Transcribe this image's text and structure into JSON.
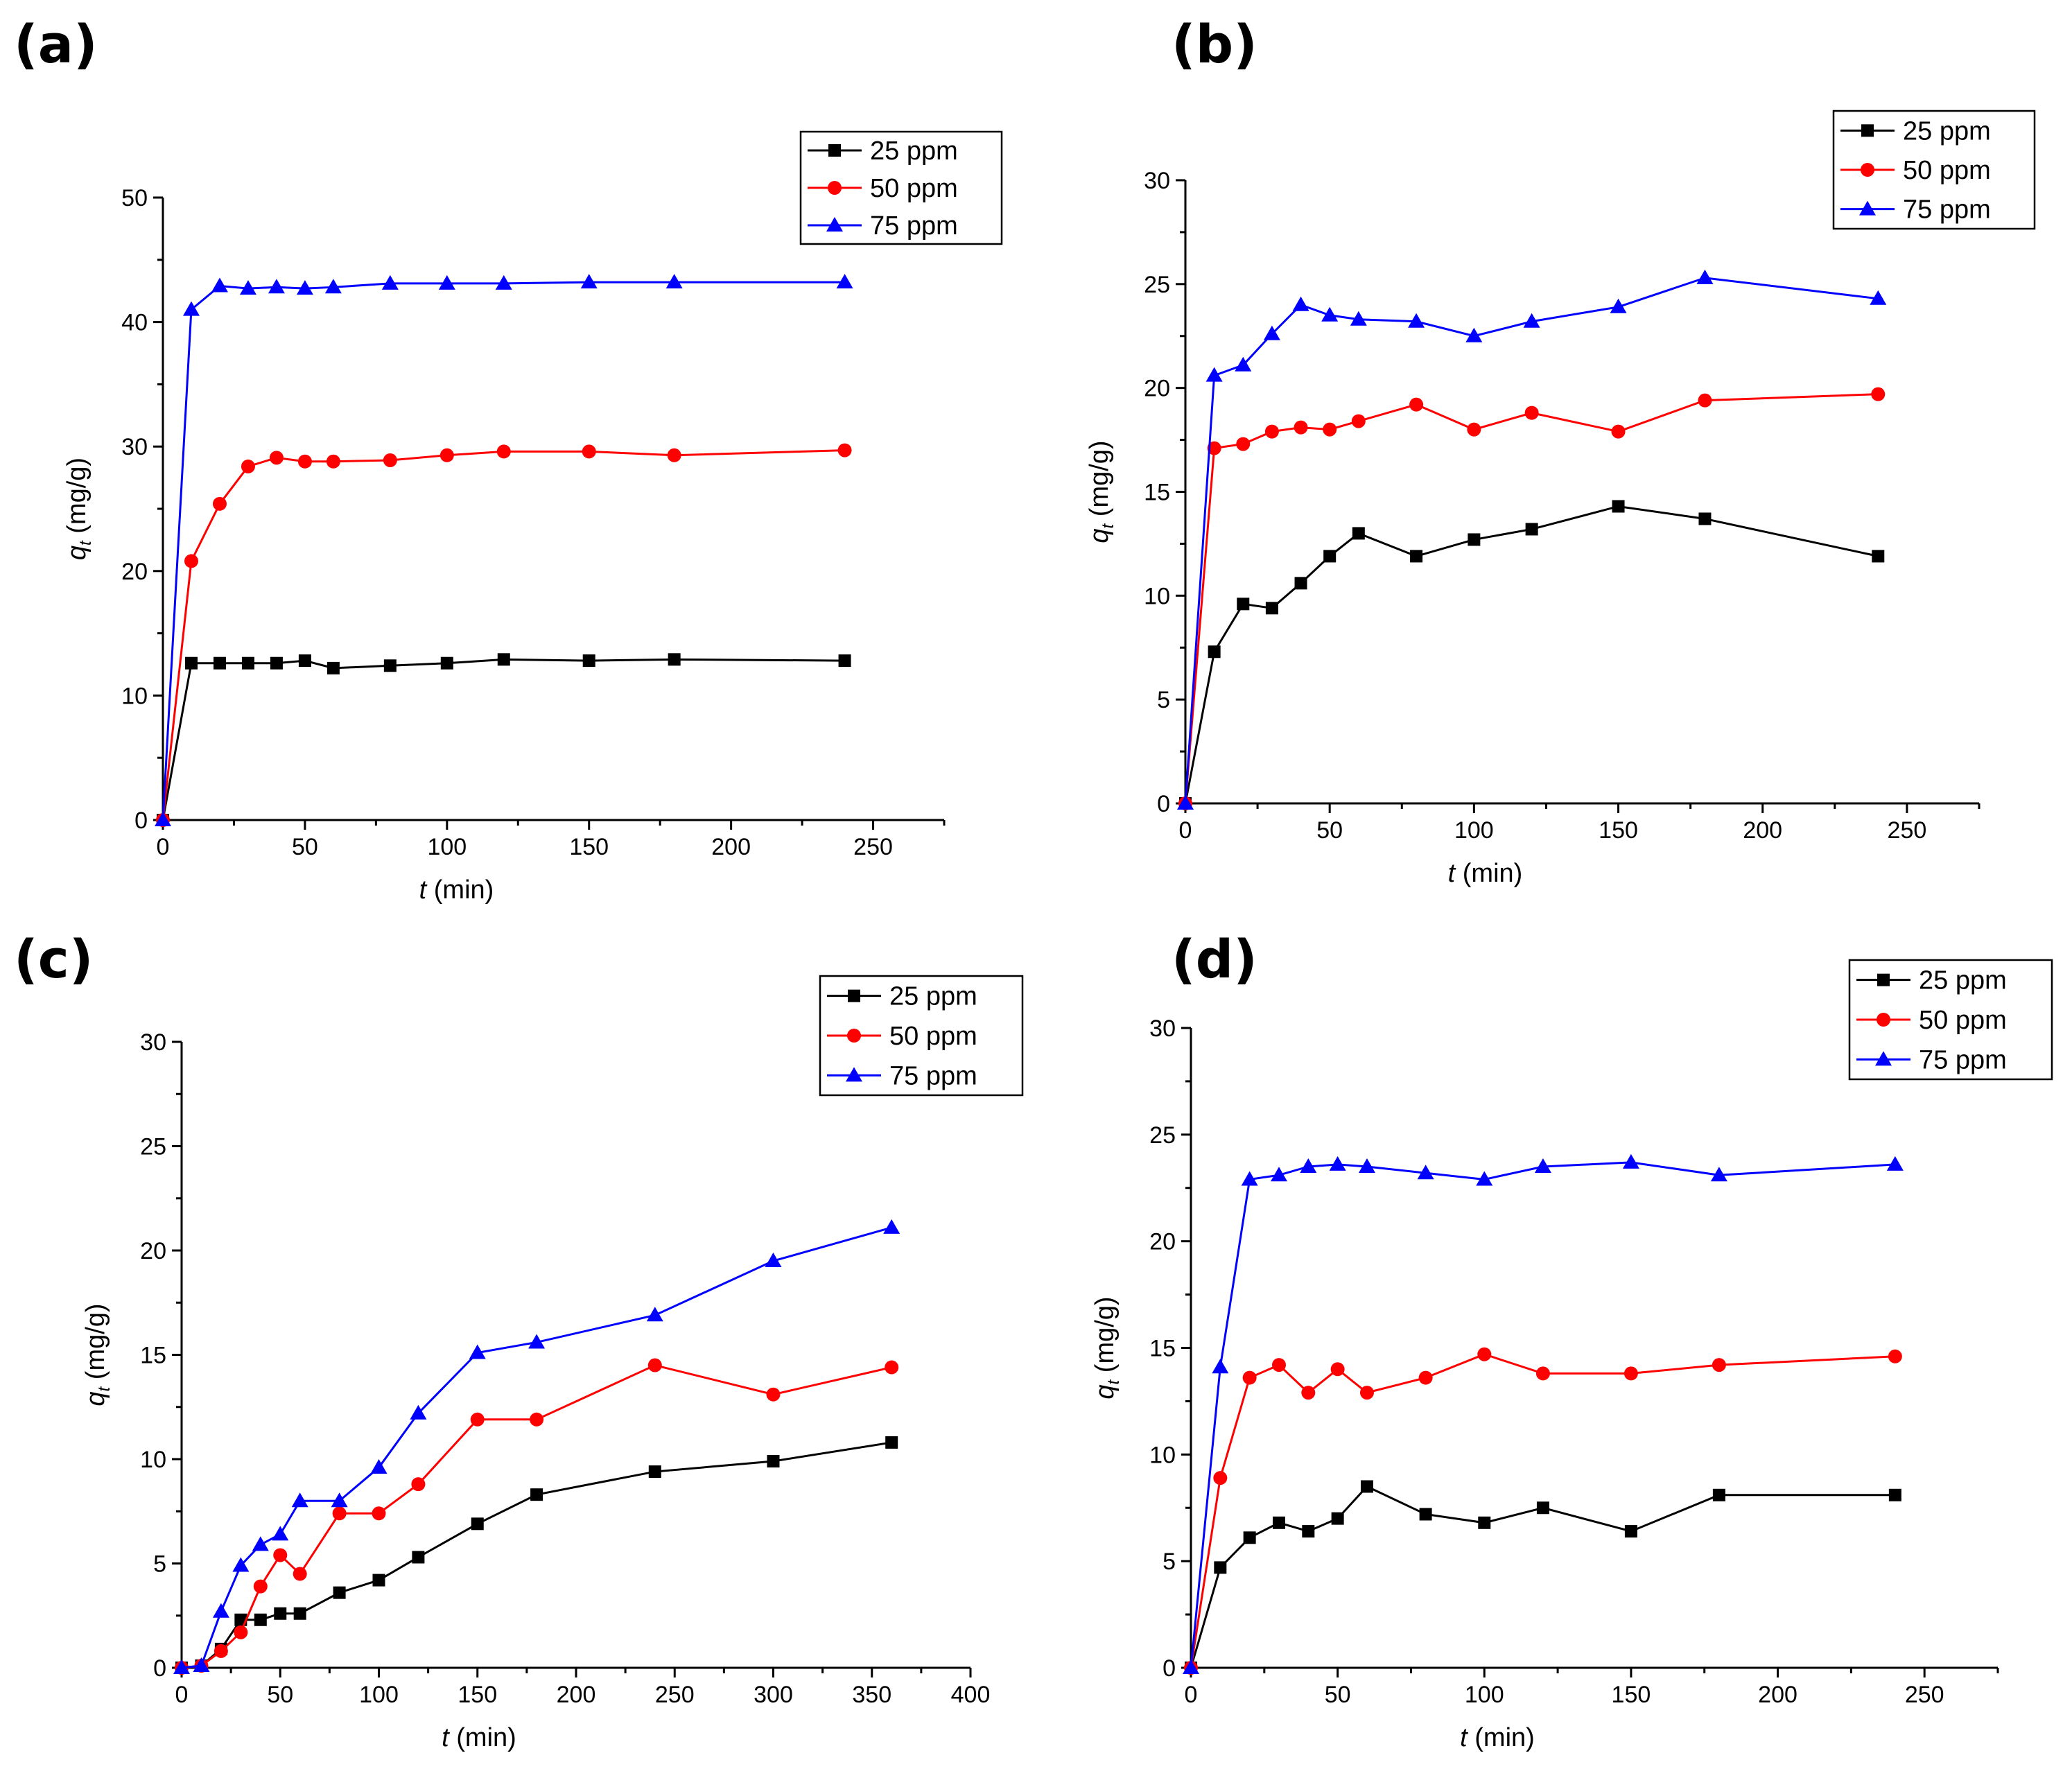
{
  "chart_data": [
    {
      "panel": "(a)",
      "type": "line",
      "xlabel_var": "t",
      "xlabel_unit": " (min)",
      "ylabel_var": "q",
      "ylabel_sub": "t",
      "ylabel_unit": " (mg/g)",
      "xlim": [
        0,
        275
      ],
      "ylim": [
        0,
        50
      ],
      "xticks": [
        0,
        50,
        100,
        150,
        200,
        250
      ],
      "yticks": [
        0,
        10,
        20,
        30,
        40,
        50
      ],
      "legend_position": "top-right",
      "series": [
        {
          "name": "25 ppm",
          "color": "#000000",
          "marker": "square",
          "x": [
            0,
            10,
            20,
            30,
            40,
            50,
            60,
            80,
            100,
            120,
            150,
            180,
            240
          ],
          "y": [
            0,
            12.6,
            12.6,
            12.6,
            12.6,
            12.8,
            12.2,
            12.4,
            12.6,
            12.9,
            12.8,
            12.9,
            12.8
          ]
        },
        {
          "name": "50 ppm",
          "color": "#ff0000",
          "marker": "circle",
          "x": [
            0,
            10,
            20,
            30,
            40,
            50,
            60,
            80,
            100,
            120,
            150,
            180,
            240
          ],
          "y": [
            0,
            20.8,
            25.4,
            28.4,
            29.1,
            28.8,
            28.8,
            28.9,
            29.3,
            29.6,
            29.6,
            29.3,
            29.7
          ]
        },
        {
          "name": "75 ppm",
          "color": "#0000ff",
          "marker": "triangle",
          "x": [
            0,
            10,
            20,
            30,
            40,
            50,
            60,
            80,
            100,
            120,
            150,
            180,
            240
          ],
          "y": [
            0,
            41.0,
            42.9,
            42.7,
            42.8,
            42.7,
            42.8,
            43.1,
            43.1,
            43.1,
            43.2,
            43.2,
            43.2
          ]
        }
      ]
    },
    {
      "panel": "(b)",
      "type": "line",
      "xlabel_var": "t",
      "xlabel_unit": " (min)",
      "ylabel_var": "q",
      "ylabel_sub": "t",
      "ylabel_unit": " (mg/g)",
      "xlim": [
        0,
        275
      ],
      "ylim": [
        0,
        30
      ],
      "xticks": [
        0,
        50,
        100,
        150,
        200,
        250
      ],
      "yticks": [
        0,
        5,
        10,
        15,
        20,
        25,
        30
      ],
      "legend_position": "top-right",
      "series": [
        {
          "name": "25 ppm",
          "color": "#000000",
          "marker": "square",
          "x": [
            0,
            10,
            20,
            30,
            40,
            50,
            60,
            80,
            100,
            120,
            150,
            180,
            240
          ],
          "y": [
            0,
            7.3,
            9.6,
            9.4,
            10.6,
            11.9,
            13.0,
            11.9,
            12.7,
            13.2,
            14.3,
            13.7,
            11.9
          ]
        },
        {
          "name": "50 ppm",
          "color": "#ff0000",
          "marker": "circle",
          "x": [
            0,
            10,
            20,
            30,
            40,
            50,
            60,
            80,
            100,
            120,
            150,
            180,
            240
          ],
          "y": [
            0,
            17.1,
            17.3,
            17.9,
            18.1,
            18.0,
            18.4,
            19.2,
            18.0,
            18.8,
            17.9,
            19.4,
            19.7
          ]
        },
        {
          "name": "75 ppm",
          "color": "#0000ff",
          "marker": "triangle",
          "x": [
            0,
            10,
            20,
            30,
            40,
            50,
            60,
            80,
            100,
            120,
            150,
            180,
            240
          ],
          "y": [
            0,
            20.6,
            21.1,
            22.6,
            24.0,
            23.5,
            23.3,
            23.2,
            22.5,
            23.2,
            23.9,
            25.3,
            24.3
          ]
        }
      ]
    },
    {
      "panel": "(c)",
      "type": "line",
      "xlabel_var": "t",
      "xlabel_unit": " (min)",
      "ylabel_var": "q",
      "ylabel_sub": "t",
      "ylabel_unit": " (mg/g)",
      "xlim": [
        0,
        400
      ],
      "ylim": [
        0,
        30
      ],
      "xticks": [
        0,
        50,
        100,
        150,
        200,
        250,
        300,
        350,
        400
      ],
      "yticks": [
        0,
        5,
        10,
        15,
        20,
        25,
        30
      ],
      "legend_position": "top-right",
      "series": [
        {
          "name": "25 ppm",
          "color": "#000000",
          "marker": "square",
          "x": [
            0,
            10,
            20,
            30,
            40,
            50,
            60,
            80,
            100,
            120,
            150,
            180,
            240,
            300,
            360
          ],
          "y": [
            0,
            0.1,
            0.9,
            2.3,
            2.3,
            2.6,
            2.6,
            3.6,
            4.2,
            5.3,
            6.9,
            8.3,
            9.4,
            9.9,
            10.8
          ]
        },
        {
          "name": "50 ppm",
          "color": "#ff0000",
          "marker": "circle",
          "x": [
            0,
            10,
            20,
            30,
            40,
            50,
            60,
            80,
            100,
            120,
            150,
            180,
            240,
            300,
            360
          ],
          "y": [
            0,
            0.1,
            0.8,
            1.7,
            3.9,
            5.4,
            4.5,
            7.4,
            7.4,
            8.8,
            11.9,
            11.9,
            14.5,
            13.1,
            14.4
          ]
        },
        {
          "name": "75 ppm",
          "color": "#0000ff",
          "marker": "triangle",
          "x": [
            0,
            10,
            20,
            30,
            40,
            50,
            60,
            80,
            100,
            120,
            150,
            180,
            240,
            300,
            360
          ],
          "y": [
            0,
            0.1,
            2.7,
            4.9,
            5.9,
            6.4,
            8.0,
            8.0,
            9.6,
            12.2,
            15.1,
            15.6,
            16.9,
            19.5,
            21.1
          ]
        }
      ]
    },
    {
      "panel": "(d)",
      "type": "line",
      "xlabel_var": "t",
      "xlabel_unit": " (min)",
      "ylabel_var": "q",
      "ylabel_sub": "t",
      "ylabel_unit": " (mg/g)",
      "xlim": [
        0,
        275
      ],
      "ylim": [
        0,
        30
      ],
      "xticks": [
        0,
        50,
        100,
        150,
        200,
        250
      ],
      "yticks": [
        0,
        5,
        10,
        15,
        20,
        25,
        30
      ],
      "legend_position": "top-right",
      "series": [
        {
          "name": "25 ppm",
          "color": "#000000",
          "marker": "square",
          "x": [
            0,
            10,
            20,
            30,
            40,
            50,
            60,
            80,
            100,
            120,
            150,
            180,
            240
          ],
          "y": [
            0,
            4.7,
            6.1,
            6.8,
            6.4,
            7.0,
            8.5,
            7.2,
            6.8,
            7.5,
            6.4,
            8.1,
            8.1
          ]
        },
        {
          "name": "50 ppm",
          "color": "#ff0000",
          "marker": "circle",
          "x": [
            0,
            10,
            20,
            30,
            40,
            50,
            60,
            80,
            100,
            120,
            150,
            180,
            240
          ],
          "y": [
            0,
            8.9,
            13.6,
            14.2,
            12.9,
            14.0,
            12.9,
            13.6,
            14.7,
            13.8,
            13.8,
            14.2,
            14.6
          ]
        },
        {
          "name": "75 ppm",
          "color": "#0000ff",
          "marker": "triangle",
          "x": [
            0,
            10,
            20,
            30,
            40,
            50,
            60,
            80,
            100,
            120,
            150,
            180,
            240
          ],
          "y": [
            0,
            14.1,
            22.9,
            23.1,
            23.5,
            23.6,
            23.5,
            23.2,
            22.9,
            23.5,
            23.7,
            23.1,
            23.6
          ]
        }
      ]
    }
  ]
}
